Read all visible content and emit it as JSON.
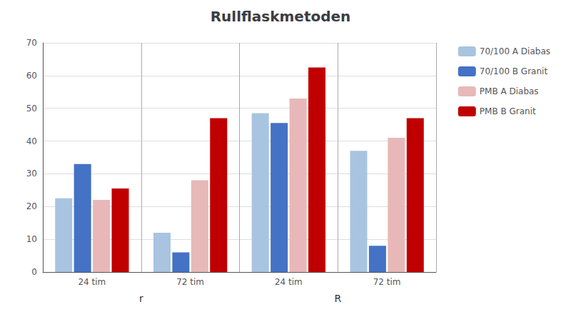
{
  "chart_data": {
    "type": "bar",
    "title": "Rullflaskmetoden",
    "categories": [
      "24 tim",
      "72 tim",
      "24 tim",
      "72 tim"
    ],
    "series": [
      {
        "name": "70/100 A Diabas",
        "color": "#a8c4e0",
        "values": [
          22.5,
          12.0,
          48.5,
          37.0
        ]
      },
      {
        "name": "70/100 B Granit",
        "color": "#4472c4",
        "values": [
          33.0,
          6.0,
          45.5,
          8.0
        ]
      },
      {
        "name": "PMB A Diabas",
        "color": "#e8b8b8",
        "values": [
          22.0,
          28.0,
          53.0,
          41.0
        ]
      },
      {
        "name": "PMB B Granit",
        "color": "#c00000",
        "values": [
          25.5,
          47.0,
          62.5,
          47.0
        ]
      }
    ],
    "annotations": [
      {
        "text": "r",
        "groups": [
          0,
          1
        ]
      },
      {
        "text": "R",
        "groups": [
          2,
          3
        ]
      }
    ],
    "ylim": [
      0,
      70
    ],
    "yticks": [
      0,
      10,
      20,
      30,
      40,
      50,
      60,
      70
    ],
    "grid": true,
    "legend": "right"
  }
}
